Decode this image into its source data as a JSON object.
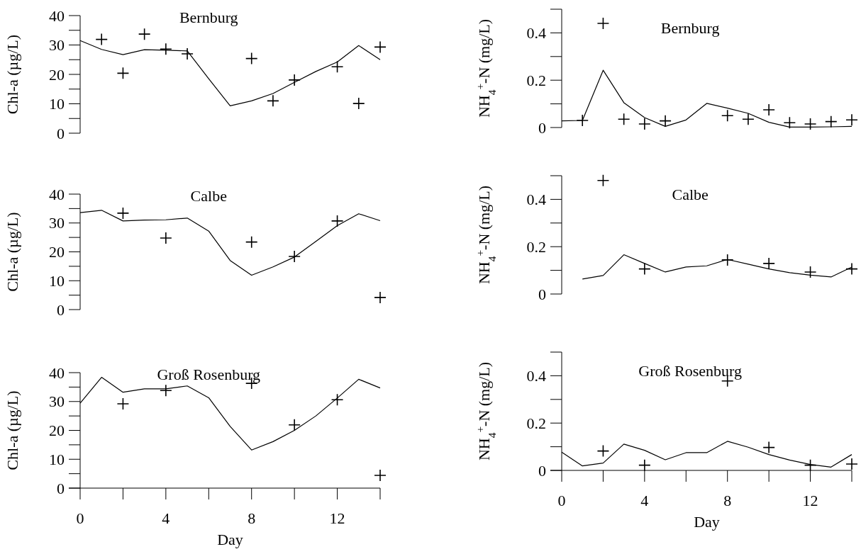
{
  "chart_data": [
    {
      "type": "line",
      "title": "Bernburg",
      "ylabel": "Chl-a (µg/L)",
      "ylim": [
        0,
        40
      ],
      "yticks": [
        0,
        {
          "value": 5,
          "label": null
        },
        10,
        {
          "value": 15,
          "label": null
        },
        20,
        {
          "value": 25,
          "label": null
        },
        30,
        {
          "value": 35,
          "label": null
        },
        40
      ],
      "tick_labels": "y",
      "categories": [
        null,
        null,
        null,
        null,
        null,
        null,
        null,
        null,
        null,
        null,
        null,
        null,
        null,
        null,
        null
      ],
      "series": [
        {
          "type": "line",
          "color": "#000000",
          "marker": "none",
          "values": [
            31.5,
            28.5,
            26.7,
            28.4,
            28.2,
            28,
            18.5,
            9.3,
            11,
            13.5,
            17.3,
            21,
            24.2,
            29.8,
            25
          ]
        },
        {
          "type": "scatter",
          "color": "#000000",
          "marker": "cross",
          "values": [
            null,
            31.9,
            20.4,
            33.7,
            28.6,
            27,
            null,
            null,
            25.4,
            11,
            18.1,
            null,
            22.6,
            10.1,
            29.3
          ]
        }
      ]
    },
    {
      "type": "line",
      "title": "Bernburg",
      "ylabel": "NH$_{4}$$^{+}$-N (mg/L)",
      "ylim": [
        0,
        0.5
      ],
      "yticks": [
        0,
        {
          "value": 0.1,
          "label": null
        },
        0.2,
        {
          "value": 0.3,
          "label": null
        },
        0.4,
        {
          "value": 0.5,
          "label": null
        }
      ],
      "tick_labels": "y",
      "categories": [
        null,
        null,
        null,
        null,
        null,
        null,
        null,
        null,
        null,
        null,
        null,
        null,
        null,
        null,
        null
      ],
      "series": [
        {
          "type": "line",
          "color": "#000000",
          "marker": "none",
          "values": [
            0.028,
            0.03,
            0.242,
            0.105,
            0.042,
            0.005,
            0.032,
            0.102,
            0.082,
            0.06,
            0.022,
            0.002,
            0.002,
            0.003,
            0.005
          ]
        },
        {
          "type": "scatter",
          "color": "#000000",
          "marker": "cross",
          "values": [
            null,
            0.03,
            0.44,
            0.035,
            0.015,
            0.028,
            null,
            null,
            0.05,
            0.035,
            0.075,
            0.02,
            0.015,
            0.025,
            0.032
          ]
        }
      ]
    },
    {
      "type": "line",
      "title": "Calbe",
      "ylabel": "Chl-a (µg/L)",
      "ylim": [
        0,
        40
      ],
      "yticks": [
        0,
        {
          "value": 5,
          "label": null
        },
        10,
        {
          "value": 15,
          "label": null
        },
        20,
        {
          "value": 25,
          "label": null
        },
        30,
        {
          "value": 35,
          "label": null
        },
        40
      ],
      "tick_labels": "y",
      "categories": [
        null,
        null,
        null,
        null,
        null,
        null,
        null,
        null,
        null,
        null,
        null,
        null,
        null,
        null,
        null
      ],
      "series": [
        {
          "type": "line",
          "color": "#000000",
          "marker": "none",
          "values": [
            33.6,
            34.4,
            30.7,
            31,
            31.1,
            31.7,
            27.2,
            17,
            11.9,
            14.8,
            18.2,
            23.6,
            29.1,
            33.2,
            30.8
          ]
        },
        {
          "type": "scatter",
          "color": "#000000",
          "marker": "cross",
          "values": [
            null,
            null,
            33.4,
            null,
            24.8,
            null,
            null,
            null,
            23.4,
            null,
            18.4,
            null,
            30.7,
            null,
            4.2
          ]
        }
      ]
    },
    {
      "type": "line",
      "title": "Calbe",
      "ylabel": "NH$_{4}$$^{+}$-N (mg/L)",
      "ylim": [
        0,
        0.5
      ],
      "yticks": [
        0,
        {
          "value": 0.1,
          "label": null
        },
        0.2,
        {
          "value": 0.3,
          "label": null
        },
        0.4,
        {
          "value": 0.5,
          "label": null
        }
      ],
      "tick_labels": "y",
      "categories": [
        null,
        null,
        null,
        null,
        null,
        null,
        null,
        null,
        null,
        null,
        null,
        null,
        null,
        null,
        null
      ],
      "series": [
        {
          "type": "line",
          "color": "#000000",
          "marker": "none",
          "values": [
            null,
            0.063,
            0.078,
            0.166,
            0.129,
            0.093,
            0.114,
            0.119,
            0.146,
            0.126,
            0.106,
            0.09,
            0.08,
            0.072,
            0.114
          ]
        },
        {
          "type": "scatter",
          "color": "#000000",
          "marker": "cross",
          "values": [
            null,
            null,
            0.48,
            null,
            0.106,
            null,
            null,
            null,
            0.144,
            null,
            0.129,
            null,
            0.093,
            null,
            0.106
          ]
        }
      ]
    },
    {
      "type": "line",
      "title": "Groß Rosenburg",
      "xlabel": "Day",
      "ylabel": "Chl-a (µg/L)",
      "xlim": [
        0,
        14
      ],
      "xticks": [
        0,
        {
          "value": 2,
          "label": null
        },
        4,
        {
          "value": 6,
          "label": null
        },
        8,
        {
          "value": 10,
          "label": null
        },
        12,
        {
          "value": 14,
          "label": null
        }
      ],
      "ylim": [
        0,
        40
      ],
      "yticks": [
        0,
        {
          "value": 5,
          "label": null
        },
        10,
        {
          "value": 15,
          "label": null
        },
        20,
        {
          "value": 25,
          "label": null
        },
        30,
        {
          "value": 35,
          "label": null
        },
        40
      ],
      "x": [
        0,
        1,
        2,
        3,
        4,
        5,
        6,
        7,
        8,
        9,
        10,
        11,
        12,
        13,
        14
      ],
      "series": [
        {
          "type": "line",
          "color": "#000000",
          "marker": "none",
          "values": [
            29.4,
            38.4,
            33.2,
            34.4,
            34.4,
            35.4,
            31.3,
            21.4,
            13.2,
            16.1,
            20,
            25,
            31.2,
            37.7,
            34.7
          ]
        },
        {
          "type": "scatter",
          "color": "#000000",
          "marker": "cross",
          "x": [
            2,
            4,
            8,
            10,
            12,
            14
          ],
          "values": [
            29.2,
            33.8,
            36.3,
            21.9,
            30.6,
            4.4
          ]
        }
      ]
    },
    {
      "type": "line",
      "title": "Groß Rosenburg",
      "xlabel": "Day",
      "ylabel": "NH$_{4}$$^{+}$-N (mg/L)",
      "xlim": [
        0,
        14
      ],
      "xticks": [
        0,
        {
          "value": 2,
          "label": null
        },
        4,
        {
          "value": 6,
          "label": null
        },
        8,
        {
          "value": 10,
          "label": null
        },
        12,
        {
          "value": 14,
          "label": null
        }
      ],
      "ylim": [
        0,
        0.5
      ],
      "yticks": [
        0,
        {
          "value": 0.1,
          "label": null
        },
        0.2,
        {
          "value": 0.3,
          "label": null
        },
        0.4,
        {
          "value": 0.5,
          "label": null
        }
      ],
      "x": [
        0,
        1,
        2,
        3,
        4,
        5,
        6,
        7,
        8,
        9,
        10,
        11,
        12,
        13,
        14
      ],
      "series": [
        {
          "type": "line",
          "color": "#000000",
          "marker": "none",
          "values": [
            0.077,
            0.019,
            0.031,
            0.111,
            0.085,
            0.045,
            0.075,
            0.075,
            0.123,
            0.098,
            0.067,
            0.044,
            0.025,
            0.014,
            0.067
          ]
        },
        {
          "type": "scatter",
          "color": "#000000",
          "marker": "cross",
          "x": [
            2,
            4,
            8,
            10,
            12,
            14
          ],
          "values": [
            0.082,
            0.022,
            0.378,
            0.097,
            0.022,
            0.027
          ]
        }
      ]
    }
  ]
}
